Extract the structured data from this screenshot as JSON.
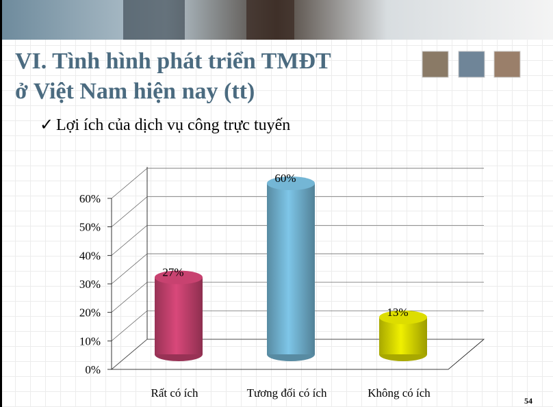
{
  "slide": {
    "title_lines": [
      "VI. Tình hình phát triển TMĐT",
      "ở Việt Nam hiện nay (tt)"
    ],
    "bullet": "Lợi ích của dịch vụ công trực tuyến",
    "page_number": "54"
  },
  "chart_data": {
    "type": "bar",
    "categories": [
      "Rất có ích",
      "Tương đối có ích",
      "Không có ích"
    ],
    "values": [
      27,
      60,
      13
    ],
    "value_labels": [
      "27%",
      "60%",
      "13%"
    ],
    "series_colors": [
      "#d9487a",
      "#7ec6e8",
      "#f0f000"
    ],
    "ylim": [
      0,
      60
    ],
    "yticks": [
      {
        "value": 0,
        "label": "0%"
      },
      {
        "value": 10,
        "label": "10%"
      },
      {
        "value": 20,
        "label": "20%"
      },
      {
        "value": 30,
        "label": "30%"
      },
      {
        "value": 40,
        "label": "40%"
      },
      {
        "value": 50,
        "label": "50%"
      },
      {
        "value": 60,
        "label": "60%"
      }
    ],
    "grid": true
  }
}
